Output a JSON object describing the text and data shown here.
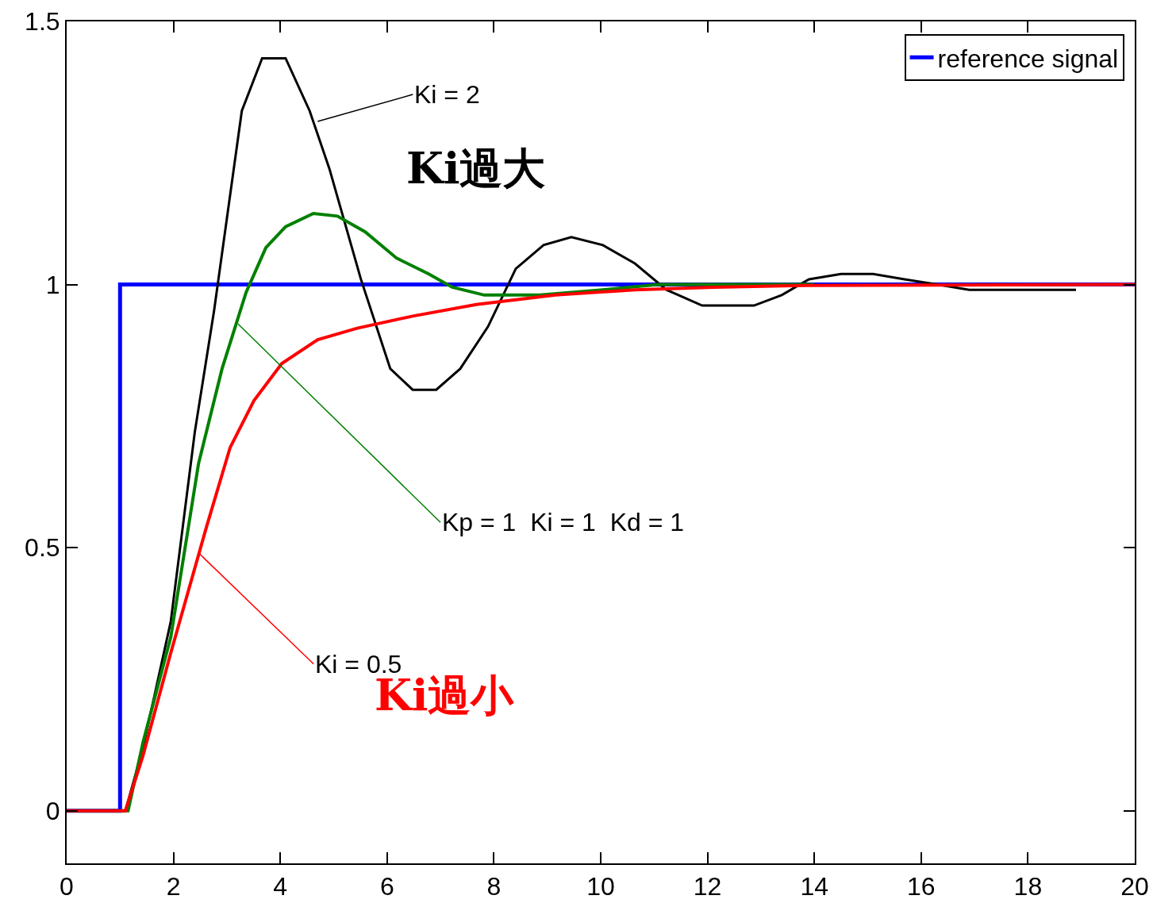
{
  "chart_data": {
    "type": "line",
    "xlim": [
      0,
      20
    ],
    "ylim": [
      -0.1,
      1.5
    ],
    "xticks": [
      0,
      2,
      4,
      6,
      8,
      10,
      12,
      14,
      16,
      18,
      20
    ],
    "yticks": [
      0,
      0.5,
      1,
      1.5
    ],
    "grid": false,
    "legend": "top right",
    "marker": "none",
    "line_style": "solid",
    "series": [
      {
        "name": "reference signal",
        "color": "#0000ff",
        "x": [
          0,
          1,
          1,
          20
        ],
        "values": [
          0,
          0,
          1,
          1
        ]
      },
      {
        "color": "#000000",
        "x": [
          0,
          1,
          1.1,
          1.43,
          1.95,
          2.4,
          2.76,
          3.28,
          3.66,
          4.1,
          4.55,
          4.92,
          5.51,
          6.06,
          6.48,
          6.92,
          7.37,
          7.89,
          8.41,
          8.93,
          9.45,
          10.04,
          10.64,
          11.23,
          11.9,
          12.87,
          13.39,
          13.9,
          14.5,
          15.1,
          15.69,
          16.3,
          16.9,
          18.9
        ],
        "values": [
          0,
          0,
          0,
          0.12,
          0.36,
          0.72,
          0.95,
          1.33,
          1.43,
          1.43,
          1.33,
          1.22,
          1.01,
          0.84,
          0.8,
          0.8,
          0.84,
          0.92,
          1.03,
          1.075,
          1.09,
          1.075,
          1.04,
          0.99,
          0.96,
          0.96,
          0.98,
          1.01,
          1.02,
          1.02,
          1.01,
          1.0,
          0.99,
          0.99
        ]
      },
      {
        "color": "#008000",
        "x": [
          0,
          1,
          1.15,
          1.43,
          1.95,
          2.47,
          2.91,
          3.36,
          3.73,
          4.1,
          4.62,
          5.07,
          5.59,
          6.18,
          6.78,
          7.22,
          7.82,
          8.86,
          10.04,
          11.08,
          14
        ],
        "values": [
          0,
          0,
          0,
          0.13,
          0.33,
          0.66,
          0.84,
          0.985,
          1.07,
          1.11,
          1.135,
          1.13,
          1.1,
          1.05,
          1.02,
          0.995,
          0.98,
          0.98,
          0.99,
          1.0,
          1.0
        ]
      },
      {
        "color": "#ff0000",
        "x": [
          0,
          1,
          1.1,
          1.43,
          1.95,
          2.62,
          3.06,
          3.51,
          4.03,
          4.7,
          5.44,
          6.48,
          7.67,
          9.15,
          10.64,
          12.12,
          13.6,
          20
        ],
        "values": [
          0,
          0,
          0,
          0.105,
          0.3,
          0.54,
          0.69,
          0.78,
          0.85,
          0.895,
          0.917,
          0.94,
          0.962,
          0.98,
          0.99,
          0.995,
          0.998,
          1
        ]
      }
    ],
    "annotations": [
      {
        "text": "Ki = 2",
        "x": 4.7,
        "y": 1.31
      },
      "Ki過大",
      {
        "text": "Kp = 1  Ki = 1  Kd = 1",
        "x": 3.21,
        "y": 0.925
      },
      {
        "text": "Ki = 0.5",
        "x": 2.47,
        "y": 0.49
      },
      "Ki過小"
    ]
  }
}
